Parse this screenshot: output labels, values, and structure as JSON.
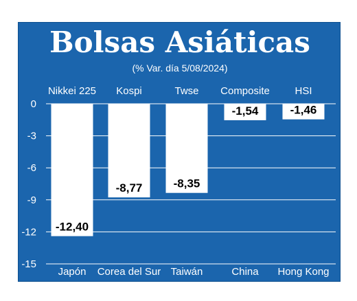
{
  "colors": {
    "panel": "#1b65ad",
    "bar": "#ffffff",
    "grid": "#ffffff",
    "text": "#ffffff",
    "label_text": "#000000"
  },
  "chart_data": {
    "type": "bar",
    "title": "Bolsas Asiáticas",
    "subtitle": "(% Var. día 5/08/2024)",
    "xlabel": "",
    "ylabel": "",
    "ylim": [
      -15,
      0
    ],
    "yticks": [
      0,
      -3,
      -6,
      -9,
      -12,
      -15
    ],
    "grid": true,
    "legend": "none",
    "top_axis_labels": [
      "Nikkei 225",
      "Kospi",
      "Twse",
      "Composite",
      "HSI"
    ],
    "categories": [
      "Japón",
      "Corea del Sur",
      "Taiwán",
      "China",
      "Hong Kong"
    ],
    "values": [
      -12.4,
      -8.77,
      -8.35,
      -1.54,
      -1.46
    ],
    "value_labels": [
      "-12,40",
      "-8,77",
      "-8,35",
      "-1,54",
      "-1,46"
    ]
  }
}
